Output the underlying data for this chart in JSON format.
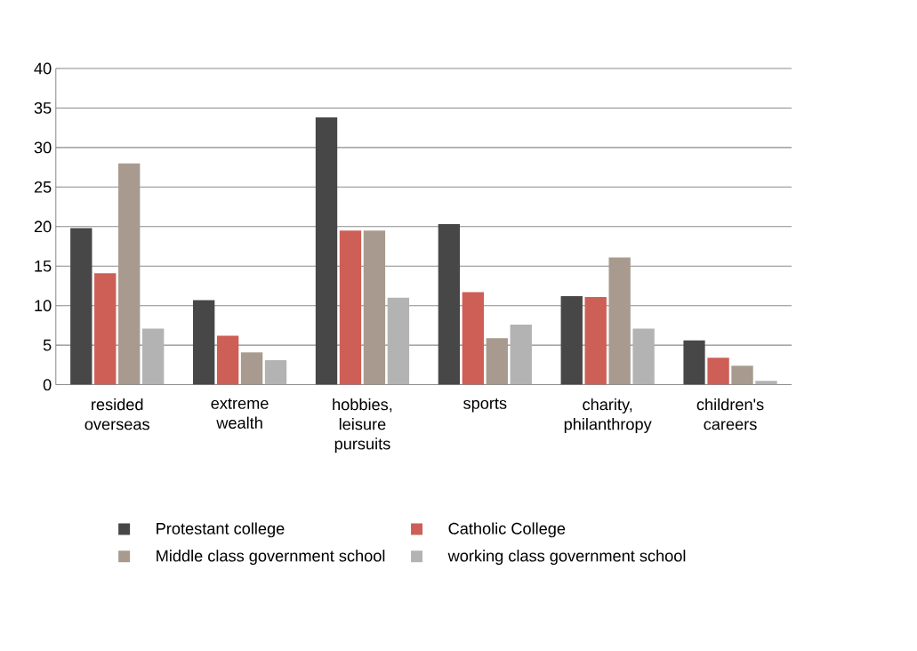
{
  "chart_data": {
    "type": "bar",
    "categories": [
      "resided overseas",
      "extreme wealth",
      "hobbies, leisure pursuits",
      "sports",
      "charity, philanthropy",
      "children's careers"
    ],
    "series": [
      {
        "name": "Protestant college",
        "color": "#474747",
        "values": [
          19.8,
          10.7,
          33.8,
          20.3,
          11.2,
          5.6
        ]
      },
      {
        "name": "Catholic College",
        "color": "#cd5f57",
        "values": [
          14.1,
          6.2,
          19.5,
          11.7,
          11.1,
          3.4
        ]
      },
      {
        "name": "Middle class government school",
        "color": "#a89a8e",
        "values": [
          28.0,
          4.1,
          19.5,
          5.9,
          16.1,
          2.4
        ]
      },
      {
        "name": "working class government school",
        "color": "#b3b3b3",
        "values": [
          7.1,
          3.1,
          11.0,
          7.6,
          7.1,
          0.5
        ]
      }
    ],
    "ylim": [
      0,
      40
    ],
    "yticks": [
      0,
      5,
      10,
      15,
      20,
      25,
      30,
      35,
      40
    ],
    "grid": "y",
    "legend": "bottom"
  }
}
